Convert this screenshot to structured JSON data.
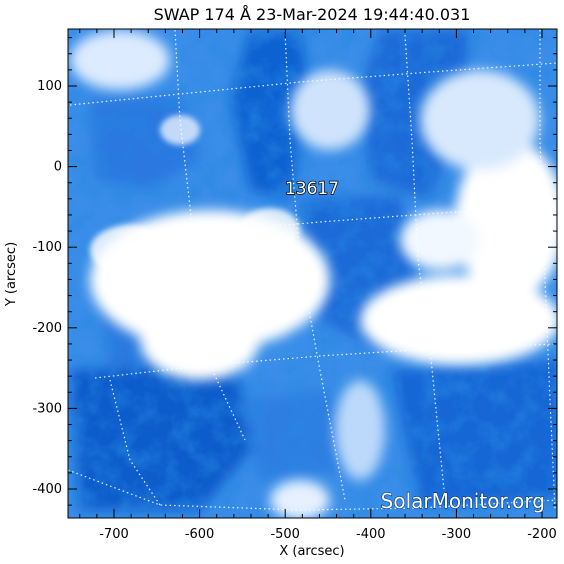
{
  "title": "SWAP 174 Å 23-Mar-2024 19:44:40.031",
  "xlabel": "X (arcsec)",
  "ylabel": "Y (arcsec)",
  "region_label": "13617",
  "watermark": "SolarMonitor.org",
  "x_ticks": [
    "-700",
    "-600",
    "-500",
    "-400",
    "-300",
    "-200"
  ],
  "y_ticks": [
    "100",
    "0",
    "-100",
    "-200",
    "-300",
    "-400"
  ],
  "colors": {
    "bright": "#ffffff",
    "dark": "#0a5fd0",
    "mid": "#5aa0ef",
    "grid": "#ffffff"
  }
}
